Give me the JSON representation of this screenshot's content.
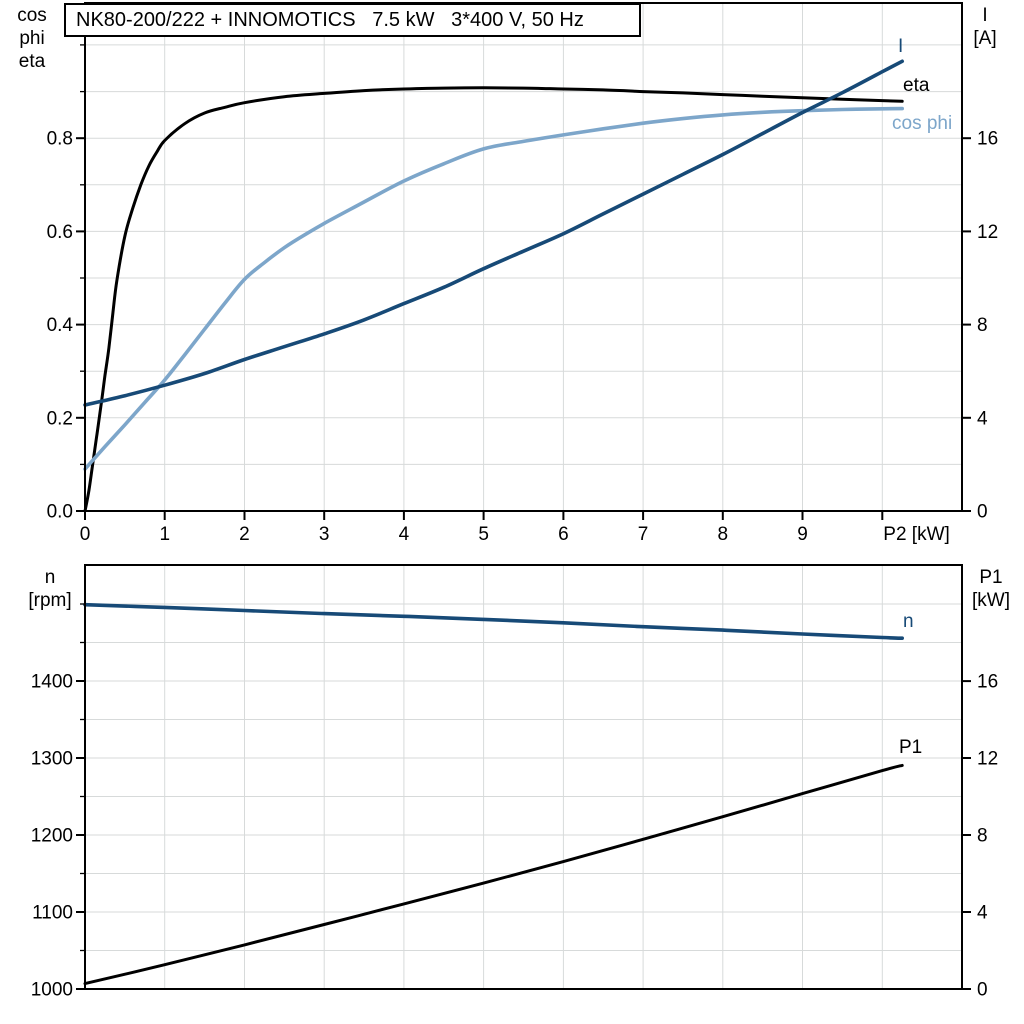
{
  "colors": {
    "background": "#ffffff",
    "frame": "#000000",
    "grid": "#d7dada",
    "dark_blue": "#174a77",
    "light_blue": "#7da6ca",
    "black": "#000000"
  },
  "chart_data": [
    {
      "type": "line",
      "title": "NK80-200/222 + INNOMOTICS   7.5 kW   3*400 V, 50 Hz",
      "x_axis": {
        "label": "P2 [kW]",
        "min": 0,
        "max": 11.0,
        "grid_step": 1,
        "tick_values": [
          0,
          1,
          2,
          3,
          4,
          5,
          6,
          7,
          8,
          9,
          10
        ],
        "tick_labels": [
          "0",
          "1",
          "2",
          "3",
          "4",
          "5",
          "6",
          "7",
          "8",
          "9",
          "P2 [kW]"
        ]
      },
      "left_axis": {
        "label_line1": "cos phi",
        "label_line2": "eta",
        "min": 0,
        "max": 1.09,
        "grid_step": 0.1,
        "minor_step": 0.1,
        "major_tick_values": [
          0,
          0.2,
          0.4,
          0.6,
          0.8
        ],
        "major_tick_labels": [
          "0.0",
          "0.2",
          "0.4",
          "0.6",
          "0.8"
        ]
      },
      "right_axis": {
        "label_line1": "I",
        "label_line2": "[A]",
        "min": 0,
        "max": 21.8,
        "major_tick_values": [
          0,
          4,
          8,
          12,
          16
        ],
        "major_tick_labels": [
          "0",
          "4",
          "8",
          "12",
          "16"
        ]
      },
      "series": [
        {
          "name": "eta",
          "axis": "left",
          "color": "#000000",
          "points": [
            [
              0,
              0
            ],
            [
              0.05,
              0.045
            ],
            [
              0.1,
              0.105
            ],
            [
              0.15,
              0.165
            ],
            [
              0.2,
              0.225
            ],
            [
              0.25,
              0.29
            ],
            [
              0.3,
              0.35
            ],
            [
              0.35,
              0.425
            ],
            [
              0.4,
              0.495
            ],
            [
              0.5,
              0.59
            ],
            [
              0.6,
              0.65
            ],
            [
              0.7,
              0.7
            ],
            [
              0.8,
              0.74
            ],
            [
              0.9,
              0.77
            ],
            [
              1,
              0.795
            ],
            [
              1.25,
              0.831
            ],
            [
              1.5,
              0.854
            ],
            [
              1.75,
              0.866
            ],
            [
              2,
              0.876
            ],
            [
              2.5,
              0.889
            ],
            [
              3,
              0.896
            ],
            [
              3.5,
              0.902
            ],
            [
              4,
              0.9055
            ],
            [
              4.5,
              0.9075
            ],
            [
              5,
              0.908
            ],
            [
              5.5,
              0.9075
            ],
            [
              6,
              0.9055
            ],
            [
              6.5,
              0.9035
            ],
            [
              7,
              0.9
            ],
            [
              7.5,
              0.897
            ],
            [
              8,
              0.8935
            ],
            [
              8.5,
              0.89
            ],
            [
              9,
              0.8865
            ],
            [
              9.5,
              0.8835
            ],
            [
              10,
              0.8805
            ],
            [
              10.25,
              0.879
            ]
          ]
        },
        {
          "name": "cos phi",
          "axis": "left",
          "color": "#7da6ca",
          "points": [
            [
              0,
              0.09
            ],
            [
              0.25,
              0.138
            ],
            [
              0.5,
              0.185
            ],
            [
              0.75,
              0.233
            ],
            [
              1,
              0.281
            ],
            [
              1.25,
              0.335
            ],
            [
              1.5,
              0.39
            ],
            [
              1.75,
              0.445
            ],
            [
              2,
              0.497
            ],
            [
              2.25,
              0.533
            ],
            [
              2.5,
              0.565
            ],
            [
              2.75,
              0.592
            ],
            [
              3,
              0.617
            ],
            [
              3.5,
              0.663
            ],
            [
              4,
              0.708
            ],
            [
              4.5,
              0.745
            ],
            [
              5,
              0.777
            ],
            [
              5.5,
              0.793
            ],
            [
              6,
              0.807
            ],
            [
              6.5,
              0.82
            ],
            [
              7,
              0.832
            ],
            [
              7.5,
              0.842
            ],
            [
              8,
              0.85
            ],
            [
              8.5,
              0.8555
            ],
            [
              9,
              0.859
            ],
            [
              9.5,
              0.8615
            ],
            [
              10,
              0.863
            ],
            [
              10.25,
              0.8635
            ]
          ]
        },
        {
          "name": "I",
          "axis": "right",
          "color": "#174a77",
          "points": [
            [
              0,
              4.55
            ],
            [
              0.5,
              4.95
            ],
            [
              1,
              5.4
            ],
            [
              1.5,
              5.9
            ],
            [
              2,
              6.5
            ],
            [
              2.5,
              7.05
            ],
            [
              3,
              7.6
            ],
            [
              3.5,
              8.2
            ],
            [
              4,
              8.9
            ],
            [
              4.5,
              9.6
            ],
            [
              5,
              10.4
            ],
            [
              5.5,
              11.15
            ],
            [
              6,
              11.9
            ],
            [
              6.5,
              12.75
            ],
            [
              7,
              13.6
            ],
            [
              7.5,
              14.45
            ],
            [
              8,
              15.3
            ],
            [
              8.5,
              16.2
            ],
            [
              9,
              17.1
            ],
            [
              9.5,
              17.95
            ],
            [
              10,
              18.85
            ],
            [
              10.25,
              19.3
            ]
          ]
        }
      ]
    },
    {
      "type": "line",
      "x_axis": {
        "min": 0,
        "max": 11.0,
        "grid_step": 1,
        "tick_values": [],
        "tick_labels": []
      },
      "left_axis": {
        "label_line1": "n",
        "label_line2": "[rpm]",
        "min": 1000,
        "max": 1550.6,
        "grid_step": 50,
        "minor_step": 50,
        "major_tick_values": [
          1000,
          1100,
          1200,
          1300,
          1400
        ],
        "major_tick_labels": [
          "1000",
          "1100",
          "1200",
          "1300",
          "1400"
        ]
      },
      "right_axis": {
        "label_line1": "P1",
        "label_line2": "[kW]",
        "min": 0,
        "max": 22.03,
        "major_tick_values": [
          0,
          4,
          8,
          12,
          16
        ],
        "major_tick_labels": [
          "0",
          "4",
          "8",
          "12",
          "16"
        ]
      },
      "series": [
        {
          "name": "n",
          "axis": "left",
          "color": "#174a77",
          "points": [
            [
              0,
              1499
            ],
            [
              1,
              1495.5
            ],
            [
              2,
              1491.5
            ],
            [
              3,
              1487.5
            ],
            [
              4,
              1484
            ],
            [
              5,
              1480
            ],
            [
              6,
              1475.5
            ],
            [
              7,
              1470.5
            ],
            [
              8,
              1466
            ],
            [
              9,
              1461
            ],
            [
              10,
              1456.5
            ],
            [
              10.25,
              1455.5
            ]
          ]
        },
        {
          "name": "P1",
          "axis": "right",
          "color": "#000000",
          "points": [
            [
              0,
              0.28
            ],
            [
              1,
              1.26
            ],
            [
              2,
              2.29
            ],
            [
              3,
              3.35
            ],
            [
              4,
              4.42
            ],
            [
              5,
              5.5
            ],
            [
              6,
              6.62
            ],
            [
              7,
              7.78
            ],
            [
              8,
              8.95
            ],
            [
              9,
              10.15
            ],
            [
              10,
              11.35
            ],
            [
              10.25,
              11.62
            ]
          ]
        }
      ]
    }
  ]
}
